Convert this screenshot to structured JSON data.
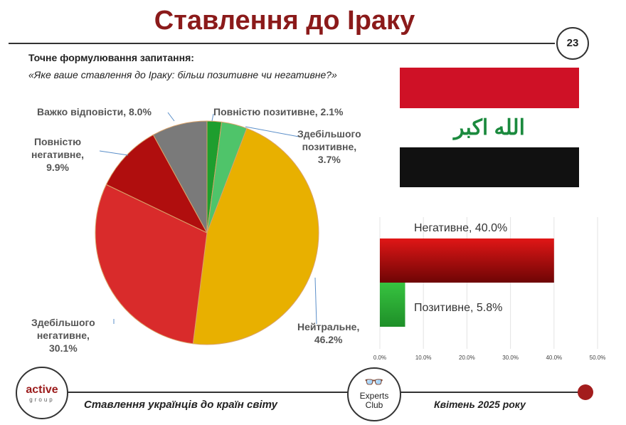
{
  "header": {
    "title": "Ставлення до Іраку",
    "page_number": "23"
  },
  "question": {
    "label": "Точне формулювання запитання:",
    "text": "«Яке ваше ставлення до Іраку: більш позитивне чи негативне?»"
  },
  "flag": {
    "inscription": "الله اكبر",
    "colors": {
      "red": "#cf1126",
      "white": "#ffffff",
      "black": "#111111",
      "green": "#1b8a3e"
    }
  },
  "chart_data": [
    {
      "type": "pie",
      "slices": [
        {
          "label": "Повністю позитивне",
          "value": 2.1,
          "label_lines": [
            "Повністю позитивне, 2.1%"
          ],
          "color": "#1e9e2e"
        },
        {
          "label": "Здебільшого позитивне",
          "value": 3.7,
          "label_lines": [
            "Здебільшого",
            "позитивне,",
            "3.7%"
          ],
          "color": "#4fc46a"
        },
        {
          "label": "Нейтральне",
          "value": 46.2,
          "label_lines": [
            "Нейтральне,",
            "46.2%"
          ],
          "color": "#e8b000"
        },
        {
          "label": "Здебільшого негативне",
          "value": 30.1,
          "label_lines": [
            "Здебільшого",
            "негативне,",
            "30.1%"
          ],
          "color": "#d92b2b"
        },
        {
          "label": "Повністю негативне",
          "value": 9.9,
          "label_lines": [
            "Повністю",
            "негативне,",
            "9.9%"
          ],
          "color": "#b00e0e"
        },
        {
          "label": "Важко відповісти",
          "value": 8.0,
          "label_lines": [
            "Важко відповісти, 8.0%"
          ],
          "color": "#7a7a7a"
        }
      ]
    },
    {
      "type": "bar",
      "orientation": "horizontal",
      "categories": [
        "Негативне",
        "Позитивне"
      ],
      "values": [
        40.0,
        5.8
      ],
      "labels": [
        "Негативне, 40.0%",
        "Позитивне, 5.8%"
      ],
      "colors": [
        "#b01010",
        "#2fae3a"
      ],
      "xlim": [
        0,
        50
      ],
      "ticks": [
        "0.0%",
        "10.0%",
        "20.0%",
        "30.0%",
        "40.0%",
        "50.0%"
      ],
      "grid": true
    }
  ],
  "footer": {
    "left": "Ставлення українців до країн світу",
    "right": "Квітень 2025 року",
    "logo_active": {
      "line1": "active",
      "line2": "group"
    },
    "logo_experts": {
      "line1": "Experts",
      "line2": "Club"
    }
  }
}
